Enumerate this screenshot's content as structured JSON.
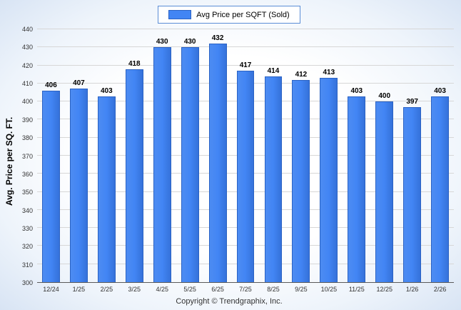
{
  "legend": {
    "label": "Avg Price per SQFT (Sold)",
    "swatch_color": "#4285f4"
  },
  "y_axis_title": "Avg. Price per SQ. FT.",
  "footer": "Copyright © Trendgraphix, Inc.",
  "chart_data": {
    "type": "bar",
    "title": "Avg Price per SQFT (Sold)",
    "categories": [
      "12/24",
      "1/25",
      "2/25",
      "3/25",
      "4/25",
      "5/25",
      "6/25",
      "7/25",
      "8/25",
      "9/25",
      "10/25",
      "11/25",
      "12/25",
      "1/26",
      "2/26"
    ],
    "values": [
      406,
      407,
      403,
      418,
      430,
      430,
      432,
      417,
      414,
      412,
      413,
      403,
      400,
      397,
      403
    ],
    "xlabel": "",
    "ylabel": "Avg. Price per SQ. FT.",
    "ylim": [
      300,
      440
    ],
    "ytick_step": 10,
    "bar_color": "#4285f4",
    "grid": true,
    "legend_position": "top",
    "legend_entries": [
      "Avg Price per SQFT (Sold)"
    ]
  }
}
